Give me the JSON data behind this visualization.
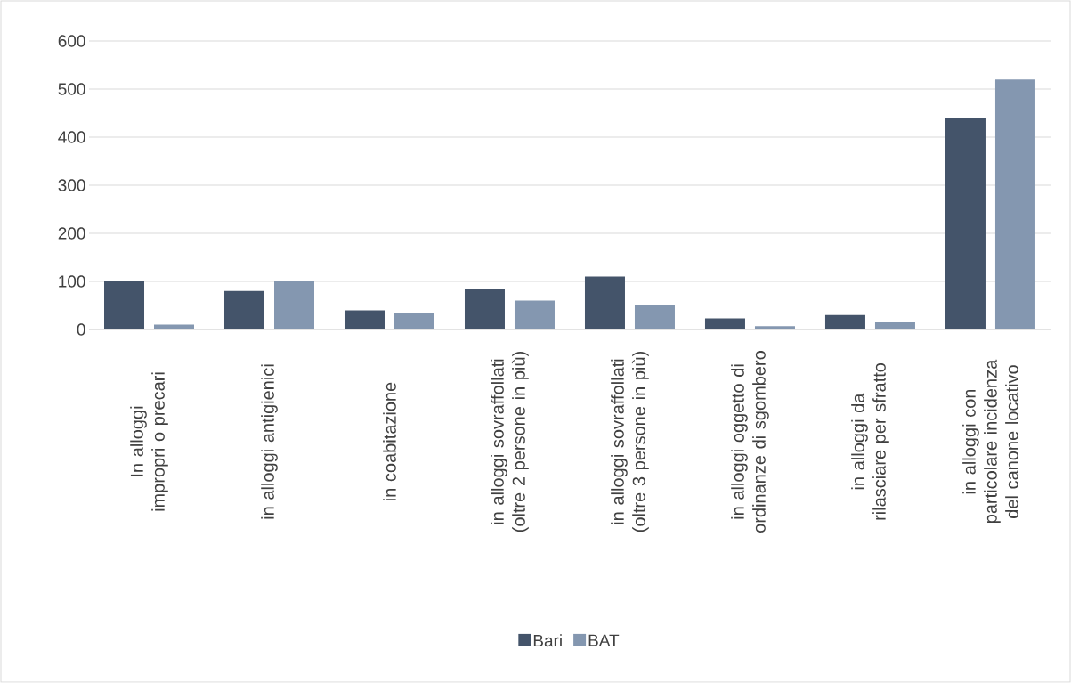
{
  "chart_data": {
    "type": "bar",
    "categories": [
      "In alloggi impropri o precari",
      "in alloggi antigienici",
      "in coabitazione",
      "in alloggi sovraffollati (oltre 2 persone in più)",
      "in alloggi sovraffollati (oltre 3 persone in più)",
      "in alloggi oggetto di ordinanze di sgombero",
      "in alloggi da rilasciare per sfratto",
      "in alloggi con particolare incidenza del canone locativo"
    ],
    "series": [
      {
        "name": "Bari",
        "color": "#44546a",
        "values": [
          100,
          80,
          40,
          85,
          110,
          23,
          30,
          440
        ]
      },
      {
        "name": "BAT",
        "color": "#8497b0",
        "values": [
          10,
          100,
          35,
          60,
          50,
          7,
          15,
          520
        ]
      }
    ],
    "ylim": [
      0,
      600
    ],
    "yticks": [
      0,
      100,
      200,
      300,
      400,
      500,
      600
    ],
    "grid": "y",
    "legend": "bottom"
  }
}
